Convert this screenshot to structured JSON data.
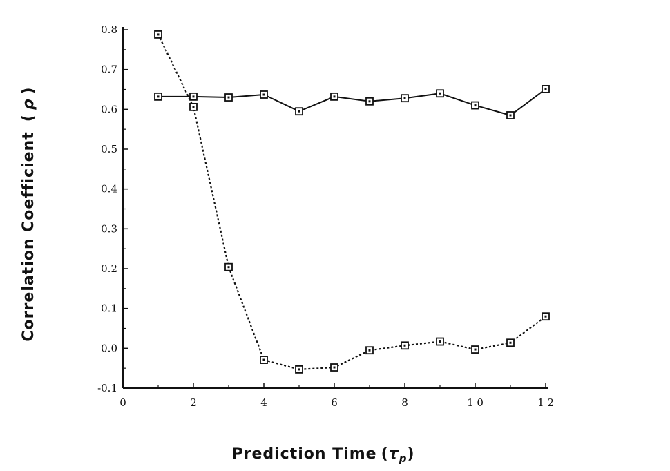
{
  "chart_data": {
    "type": "line",
    "xlabel": "Prediction Time",
    "xlabel_symbol": "τ",
    "xlabel_subscript": "p",
    "ylabel": "Correlation Coefficient",
    "ylabel_symbol": "ρ",
    "xlim": [
      0,
      12
    ],
    "ylim": [
      -0.1,
      0.8
    ],
    "x_ticks": [
      0,
      2,
      4,
      6,
      8,
      10,
      12
    ],
    "x_tick_labels": [
      "0",
      "2",
      "4",
      "6",
      "8",
      "1 0",
      "1 2"
    ],
    "y_ticks": [
      -0.1,
      0.0,
      0.1,
      0.2,
      0.3,
      0.4,
      0.5,
      0.6,
      0.7,
      0.8
    ],
    "y_tick_labels": [
      "-0.1",
      "0.0",
      "0.1",
      "0.2",
      "0.3",
      "0.4",
      "0.5",
      "0.6",
      "0.7",
      "0.8"
    ],
    "grid": false,
    "legend": "none",
    "series": [
      {
        "style": "solid",
        "marker": "square",
        "color": "#111111",
        "x": [
          1,
          2,
          3,
          4,
          5,
          6,
          7,
          8,
          9,
          10,
          11,
          12
        ],
        "y": [
          0.632,
          0.632,
          0.63,
          0.637,
          0.595,
          0.632,
          0.62,
          0.628,
          0.64,
          0.61,
          0.585,
          0.651
        ]
      },
      {
        "style": "dotted",
        "marker": "square",
        "color": "#111111",
        "x": [
          1,
          2,
          3,
          4,
          5,
          6,
          7,
          8,
          9,
          10,
          11,
          12
        ],
        "y": [
          0.788,
          0.606,
          0.204,
          -0.029,
          -0.053,
          -0.048,
          -0.005,
          0.007,
          0.017,
          -0.003,
          0.014,
          0.08
        ]
      }
    ]
  }
}
